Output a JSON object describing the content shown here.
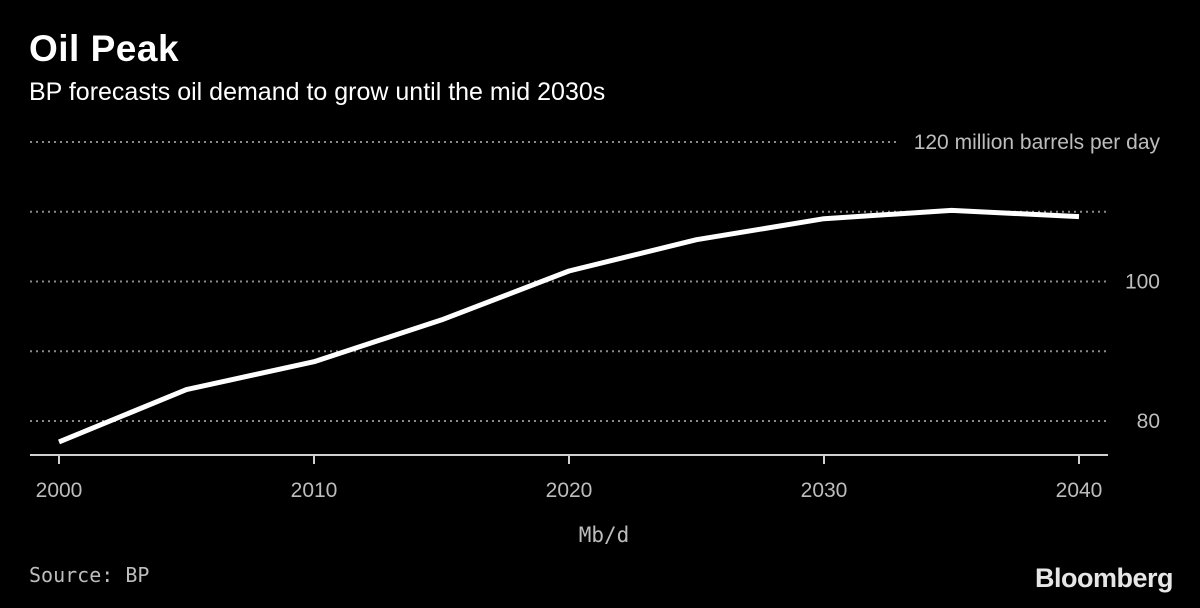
{
  "header": {
    "title": "Oil Peak",
    "subtitle": "BP forecasts oil demand to grow until the mid 2030s"
  },
  "footer": {
    "source": "Source: BP",
    "logo": "Bloomberg"
  },
  "colors": {
    "background": "#000000",
    "line": "#ffffff",
    "gridline": "#8a8a8a",
    "tick_text": "#bdbdbd"
  },
  "chart_data": {
    "type": "line",
    "title": "Oil Peak",
    "subtitle": "BP forecasts oil demand to grow until the mid 2030s",
    "xlabel": "Mb/d",
    "ylabel": "",
    "x": [
      2000,
      2005,
      2010,
      2015,
      2020,
      2025,
      2030,
      2035,
      2040
    ],
    "series": [
      {
        "values": [
          77,
          84.5,
          88.5,
          94.5,
          101.5,
          106,
          109,
          110.2,
          109.3
        ]
      }
    ],
    "xlim": [
      1999,
      2041
    ],
    "ylim": [
      75.5,
      120
    ],
    "x_ticks": [
      2000,
      2010,
      2020,
      2030,
      2040
    ],
    "x_tick_labels": [
      "2000",
      "2010",
      "2020",
      "2030",
      "2040"
    ],
    "y_gridlines": [
      80,
      90,
      100,
      110,
      120
    ],
    "y_tick_labels": [
      {
        "value": 80,
        "label": "80"
      },
      {
        "value": 100,
        "label": "100"
      },
      {
        "value": 120,
        "label": "120 million barrels per day"
      }
    ],
    "grid": true,
    "legend": "none"
  }
}
